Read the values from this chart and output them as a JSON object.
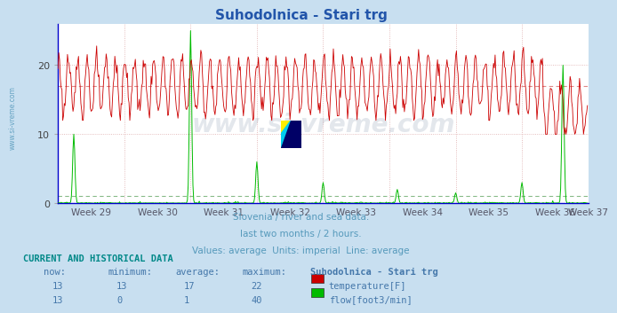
{
  "title": "Suhodolnica - Stari trg",
  "title_color": "#2255aa",
  "bg_color": "#c8dff0",
  "plot_bg_color": "#ffffff",
  "x_labels": [
    "Week 29",
    "Week 30",
    "Week 31",
    "Week 32",
    "Week 33",
    "Week 34",
    "Week 35",
    "Week 36",
    "Week 37"
  ],
  "y_ticks": [
    0,
    10,
    20
  ],
  "y_min": 0,
  "y_max": 26,
  "temp_color": "#cc0000",
  "temp_avg_color": "#dd8888",
  "flow_color": "#00bb00",
  "flow_avg_color": "#88bb88",
  "height_color": "#0000cc",
  "footer_color": "#5599bb",
  "footer_line1": "Slovenia / river and sea data.",
  "footer_line2": "last two months / 2 hours.",
  "footer_line3": "Values: average  Units: imperial  Line: average",
  "table_header": "CURRENT AND HISTORICAL DATA",
  "table_header_color": "#008888",
  "col_headers": [
    "now:",
    "minimum:",
    "average:",
    "maximum:",
    "Suhodolnica - Stari trg"
  ],
  "row1": [
    "13",
    "13",
    "17",
    "22"
  ],
  "row2": [
    "13",
    "0",
    "1",
    "40"
  ],
  "legend1_color": "#cc0000",
  "legend1_label": "temperature[F]",
  "legend2_color": "#00bb00",
  "legend2_label": "flow[foot3/min]",
  "temp_avg_value": 17,
  "flow_avg_value": 1,
  "n_points": 672,
  "week_positions": [
    0,
    84,
    168,
    252,
    336,
    420,
    504,
    588,
    672
  ],
  "axis_color": "#0000cc",
  "grid_h_color": "#ddaaaa",
  "grid_v_color": "#ddaaaa",
  "left_margin_label": "www.si-vreme.com",
  "left_label_color": "#5599bb",
  "watermark_text": "www.si-vreme.com",
  "watermark_color": "#1a3a6a"
}
